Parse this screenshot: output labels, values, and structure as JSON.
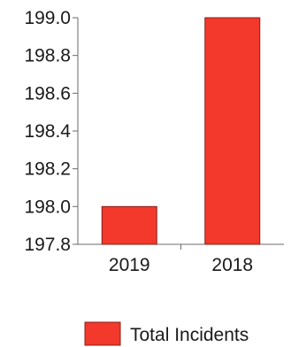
{
  "chart_data": {
    "type": "bar",
    "categories": [
      "2019",
      "2018"
    ],
    "series": [
      {
        "name": "Total Incidents",
        "values": [
          198.0,
          199.0
        ]
      }
    ],
    "ylim": [
      197.8,
      199.0
    ],
    "yticks": [
      "199.0",
      "198.8",
      "198.6",
      "198.4",
      "198.2",
      "198.0",
      "197.8"
    ],
    "title": "",
    "xlabel": "",
    "ylabel": "",
    "grid": false,
    "legend_position": "bottom-right",
    "bar_color": "#f2392b"
  }
}
